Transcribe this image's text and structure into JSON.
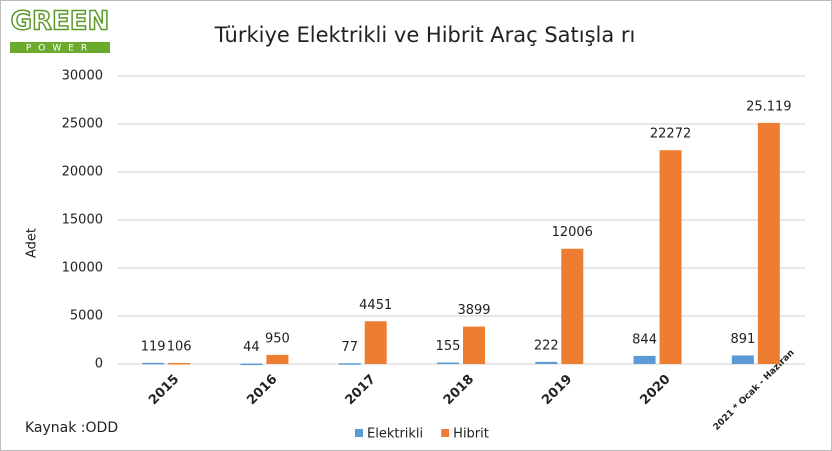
{
  "logo": {
    "top": "GREEN",
    "bottom": "POWER"
  },
  "source": "Kaynak :ODD",
  "chart_data": {
    "type": "bar",
    "title": "Türkiye Elektrikli ve Hibrit Araç  Satışla rı",
    "y_label": "Adet",
    "categories": [
      "2015",
      "2016",
      "2017",
      "2018",
      "2019",
      "2020",
      "2021 * Ocak - Haziran"
    ],
    "series": [
      {
        "name": "Elektrikli",
        "color": "#5b9bd5",
        "values": [
          119,
          44,
          77,
          155,
          222,
          844,
          891
        ]
      },
      {
        "name": "Hibrit",
        "color": "#ed7d31",
        "values": [
          106,
          950,
          4451,
          3899,
          12006,
          22272,
          25119
        ],
        "value_labels": [
          "106",
          "950",
          "4451",
          "3899",
          "12006",
          "22272",
          "25.119"
        ]
      }
    ],
    "ylim": [
      0,
      30000
    ],
    "yticks": [
      0,
      5000,
      10000,
      15000,
      20000,
      25000,
      30000
    ],
    "grid": true,
    "legend": "bottom"
  }
}
